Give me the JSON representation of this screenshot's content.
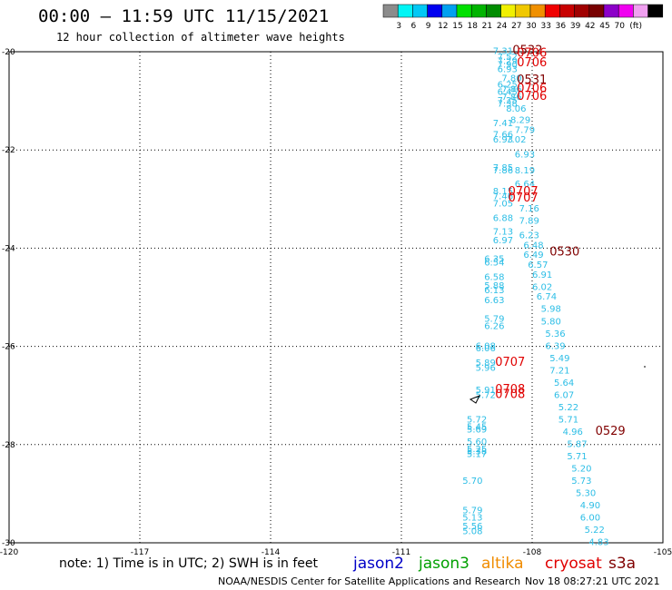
{
  "title": "00:00 – 11:59 UTC 11/15/2021",
  "subtitle": "12 hour collection of altimeter wave heights",
  "scale": {
    "unit": "(ft)",
    "colors": [
      "#8c8c8c",
      "#00f5f5",
      "#00c8f5",
      "#0000f0",
      "#00a0f0",
      "#00e000",
      "#00b400",
      "#008c00",
      "#f0f000",
      "#f0c800",
      "#f09000",
      "#f00000",
      "#c80000",
      "#a00000",
      "#780000",
      "#8c00c8",
      "#f000f0",
      "#f0a0f0",
      "#000000"
    ],
    "labels": [
      "3",
      "6",
      "9",
      "12",
      "15",
      "18",
      "21",
      "24",
      "27",
      "30",
      "33",
      "36",
      "39",
      "42",
      "45",
      "70"
    ]
  },
  "note": "note: 1) Time is in UTC; 2) SWH is in feet",
  "satellites": [
    {
      "name": "jason2",
      "color": "#0000c8"
    },
    {
      "name": "jason3",
      "color": "#00a000"
    },
    {
      "name": "altika",
      "color": "#f08c00"
    },
    {
      "name": "cryosat",
      "color": "#e00000"
    },
    {
      "name": "s3a",
      "color": "#800000"
    }
  ],
  "footer": {
    "credit": "NOAA/NESDIS Center for Satellite Applications and Research",
    "timestamp": "Nov 18 08:27:21 UTC 2021"
  },
  "chart_data": {
    "type": "scatter",
    "title": "00:00 – 11:59 UTC 11/15/2021",
    "xlim": [
      -120,
      -105
    ],
    "ylim": [
      -30,
      -20
    ],
    "xticks": [
      "-120",
      "-117",
      "-114",
      "-111",
      "-108",
      "-105"
    ],
    "yticks": [
      "-20",
      "-22",
      "-24",
      "-26",
      "-28",
      "-30"
    ],
    "grid": true,
    "series": [
      {
        "name": "cryosat",
        "color": "#2dbee6",
        "points": [
          {
            "x": -108.9,
            "y": -20.05,
            "v": "7.31"
          },
          {
            "x": -108.8,
            "y": -20.17,
            "v": "7.52"
          },
          {
            "x": -108.8,
            "y": -20.25,
            "v": "7.29"
          },
          {
            "x": -108.8,
            "y": -20.32,
            "v": "7.90"
          },
          {
            "x": -108.8,
            "y": -20.42,
            "v": "6.93"
          },
          {
            "x": -108.7,
            "y": -20.6,
            "v": "7.80"
          },
          {
            "x": -108.8,
            "y": -20.73,
            "v": "6.25"
          },
          {
            "x": -108.7,
            "y": -20.82,
            "v": "7.86"
          },
          {
            "x": -108.8,
            "y": -20.88,
            "v": "6.45"
          },
          {
            "x": -108.7,
            "y": -20.98,
            "v": "7.86"
          },
          {
            "x": -108.8,
            "y": -21.05,
            "v": "7.25"
          },
          {
            "x": -108.8,
            "y": -21.12,
            "v": "7.38"
          },
          {
            "x": -108.6,
            "y": -21.22,
            "v": "8.06"
          },
          {
            "x": -108.5,
            "y": -21.45,
            "v": "8.29"
          },
          {
            "x": -108.9,
            "y": -21.52,
            "v": "7.41"
          },
          {
            "x": -108.4,
            "y": -21.65,
            "v": "7.79"
          },
          {
            "x": -108.9,
            "y": -21.75,
            "v": "7.66"
          },
          {
            "x": -108.9,
            "y": -21.85,
            "v": "6.93"
          },
          {
            "x": -108.6,
            "y": -21.85,
            "v": "7.02"
          },
          {
            "x": -108.4,
            "y": -22.15,
            "v": "6.93"
          },
          {
            "x": -108.9,
            "y": -22.42,
            "v": "7.85"
          },
          {
            "x": -108.9,
            "y": -22.48,
            "v": "7.86"
          },
          {
            "x": -108.4,
            "y": -22.48,
            "v": "8.19"
          },
          {
            "x": -108.4,
            "y": -22.75,
            "v": "6.64"
          },
          {
            "x": -108.9,
            "y": -22.9,
            "v": "8.15"
          },
          {
            "x": -108.9,
            "y": -23.0,
            "v": "7.46"
          },
          {
            "x": -108.9,
            "y": -23.15,
            "v": "7.05"
          },
          {
            "x": -108.3,
            "y": -23.25,
            "v": "7.16"
          },
          {
            "x": -108.9,
            "y": -23.45,
            "v": "6.88"
          },
          {
            "x": -108.3,
            "y": -23.5,
            "v": "7.89"
          },
          {
            "x": -108.9,
            "y": -23.72,
            "v": "7.13"
          },
          {
            "x": -108.3,
            "y": -23.8,
            "v": "6.23"
          },
          {
            "x": -108.9,
            "y": -23.9,
            "v": "6.97"
          },
          {
            "x": -108.2,
            "y": -24.0,
            "v": "6.48"
          },
          {
            "x": -108.2,
            "y": -24.2,
            "v": "6.49"
          },
          {
            "x": -109.1,
            "y": -24.28,
            "v": "6.35"
          },
          {
            "x": -109.1,
            "y": -24.35,
            "v": "6.54"
          },
          {
            "x": -108.1,
            "y": -24.4,
            "v": "6.57"
          },
          {
            "x": -108.0,
            "y": -24.6,
            "v": "6.91"
          },
          {
            "x": -109.1,
            "y": -24.65,
            "v": "6.58"
          },
          {
            "x": -109.1,
            "y": -24.82,
            "v": "5.88"
          },
          {
            "x": -108.0,
            "y": -24.85,
            "v": "6.02"
          },
          {
            "x": -109.1,
            "y": -24.92,
            "v": "6.13"
          },
          {
            "x": -107.9,
            "y": -25.05,
            "v": "6.74"
          },
          {
            "x": -109.1,
            "y": -25.12,
            "v": "6.63"
          },
          {
            "x": -107.8,
            "y": -25.3,
            "v": "5.98"
          },
          {
            "x": -109.1,
            "y": -25.5,
            "v": "5.79"
          },
          {
            "x": -107.8,
            "y": -25.55,
            "v": "5.80"
          },
          {
            "x": -109.1,
            "y": -25.65,
            "v": "6.26"
          },
          {
            "x": -107.7,
            "y": -25.8,
            "v": "5.36"
          },
          {
            "x": -107.7,
            "y": -26.05,
            "v": "6.39"
          },
          {
            "x": -109.3,
            "y": -26.05,
            "v": "6.08"
          },
          {
            "x": -109.3,
            "y": -26.1,
            "v": "6.06"
          },
          {
            "x": -107.6,
            "y": -26.3,
            "v": "5.49"
          },
          {
            "x": -109.3,
            "y": -26.4,
            "v": "5.89"
          },
          {
            "x": -109.3,
            "y": -26.5,
            "v": "5.96"
          },
          {
            "x": -107.6,
            "y": -26.55,
            "v": "7.21"
          },
          {
            "x": -107.5,
            "y": -26.8,
            "v": "5.64"
          },
          {
            "x": -107.5,
            "y": -27.05,
            "v": "6.07"
          },
          {
            "x": -109.3,
            "y": -26.95,
            "v": "5.91"
          },
          {
            "x": -109.3,
            "y": -27.05,
            "v": "5.72"
          },
          {
            "x": -107.4,
            "y": -27.3,
            "v": "5.22"
          },
          {
            "x": -107.4,
            "y": -27.55,
            "v": "5.71"
          },
          {
            "x": -109.5,
            "y": -27.55,
            "v": "5.72"
          },
          {
            "x": -109.5,
            "y": -27.7,
            "v": "5.45"
          },
          {
            "x": -109.5,
            "y": -27.75,
            "v": "5.69"
          },
          {
            "x": -107.3,
            "y": -27.8,
            "v": "4.96"
          },
          {
            "x": -107.2,
            "y": -28.05,
            "v": "5.87"
          },
          {
            "x": -109.5,
            "y": -28.0,
            "v": "5.60"
          },
          {
            "x": -109.5,
            "y": -28.15,
            "v": "5.25"
          },
          {
            "x": -109.5,
            "y": -28.2,
            "v": "5.38"
          },
          {
            "x": -109.5,
            "y": -28.25,
            "v": "5.17"
          },
          {
            "x": -107.2,
            "y": -28.3,
            "v": "5.71"
          },
          {
            "x": -107.1,
            "y": -28.55,
            "v": "5.20"
          },
          {
            "x": -109.6,
            "y": -28.8,
            "v": "5.70"
          },
          {
            "x": -107.1,
            "y": -28.8,
            "v": "5.73"
          },
          {
            "x": -107.0,
            "y": -29.05,
            "v": "5.30"
          },
          {
            "x": -106.9,
            "y": -29.3,
            "v": "4.90"
          },
          {
            "x": -109.6,
            "y": -29.4,
            "v": "5.79"
          },
          {
            "x": -109.6,
            "y": -29.55,
            "v": "5.13"
          },
          {
            "x": -106.9,
            "y": -29.55,
            "v": "6.00"
          },
          {
            "x": -109.6,
            "y": -29.72,
            "v": "5.56"
          },
          {
            "x": -109.6,
            "y": -29.82,
            "v": "5.08"
          },
          {
            "x": -106.8,
            "y": -29.8,
            "v": "5.22"
          },
          {
            "x": -106.7,
            "y": -30.05,
            "v": "4.83"
          }
        ]
      }
    ],
    "time_labels": [
      {
        "x": -108.45,
        "y": -20.05,
        "v": "0532",
        "color": "#800000"
      },
      {
        "x": -108.35,
        "y": -20.1,
        "v": "0706",
        "color": "#e00000"
      },
      {
        "x": -108.35,
        "y": -20.3,
        "v": "0706",
        "color": "#e00000"
      },
      {
        "x": -108.35,
        "y": -20.65,
        "v": "0531",
        "color": "#800000"
      },
      {
        "x": -108.35,
        "y": -20.82,
        "v": "0706",
        "color": "#e00000"
      },
      {
        "x": -108.35,
        "y": -20.98,
        "v": "0706",
        "color": "#e00000"
      },
      {
        "x": -108.55,
        "y": -22.92,
        "v": "0707",
        "color": "#e00000"
      },
      {
        "x": -108.55,
        "y": -23.05,
        "v": "0707",
        "color": "#e00000"
      },
      {
        "x": -107.6,
        "y": -24.15,
        "v": "0530",
        "color": "#800000"
      },
      {
        "x": -108.85,
        "y": -26.4,
        "v": "0707",
        "color": "#e00000"
      },
      {
        "x": -108.85,
        "y": -26.95,
        "v": "0708",
        "color": "#e00000"
      },
      {
        "x": -108.85,
        "y": -27.05,
        "v": "0708",
        "color": "#e00000"
      },
      {
        "x": -106.55,
        "y": -27.8,
        "v": "0529",
        "color": "#800000"
      }
    ]
  }
}
